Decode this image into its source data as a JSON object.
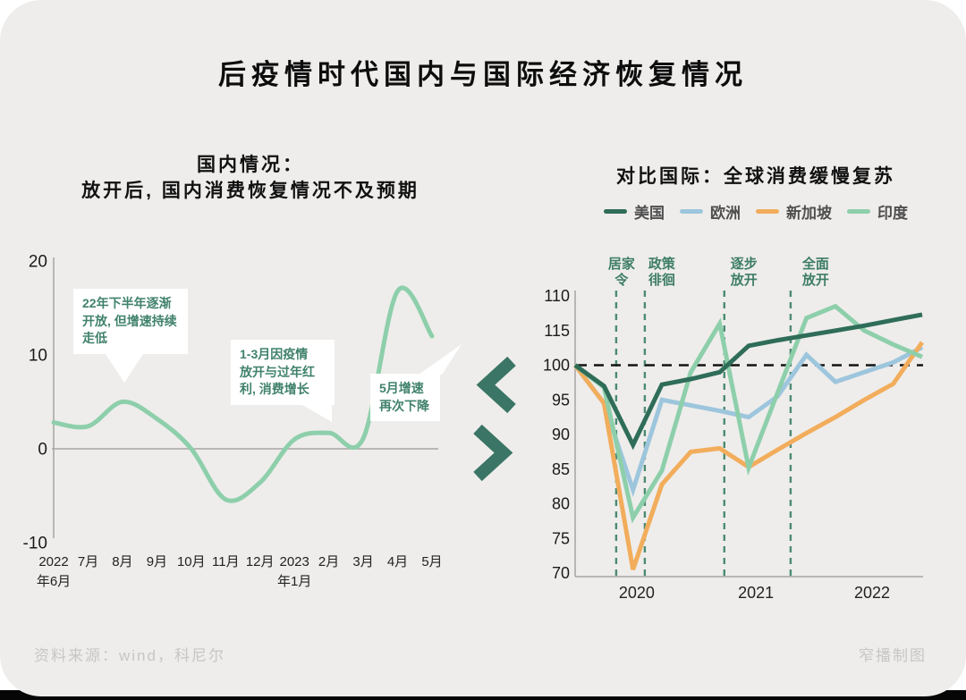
{
  "page": {
    "main_title": "后疫情时代国内与国际经济恢复情况",
    "source_note": "资料来源：wind，科尼尔",
    "credit": "窄播制图"
  },
  "left_section": {
    "subtitle_line1": "国内情况：",
    "subtitle_line2": "放开后, 国内消费恢复情况不及预期",
    "annotations": [
      {
        "lines": [
          "22年下半年逐渐",
          "开放, 但增速持续",
          "走低"
        ]
      },
      {
        "lines": [
          "1-3月因疫情",
          "放开与过年红",
          "利, 消费增长"
        ]
      },
      {
        "lines": [
          "5月增速",
          "再次下降"
        ]
      }
    ]
  },
  "right_section": {
    "subtitle": "对比国际：全球消费缓慢复苏"
  },
  "chart_data": [
    {
      "type": "line",
      "title": "国内情况：放开后, 国内消费恢复情况不及预期",
      "x_labels": [
        "2022年6月",
        "7月",
        "8月",
        "9月",
        "10月",
        "11月",
        "12月",
        "2023年1月",
        "2月",
        "3月",
        "4月",
        "5月"
      ],
      "values": [
        2.8,
        2.4,
        5.0,
        3.2,
        0,
        -5.4,
        -3.6,
        1.0,
        1.7,
        1.1,
        16.8,
        12.0
      ],
      "yticks": [
        20,
        10,
        0,
        -10
      ],
      "ylim": [
        -10,
        20
      ],
      "smooth": true,
      "grid": false,
      "line_color": "#8ecfab",
      "annotations": [
        "22年下半年逐渐开放, 但增速持续走低",
        "1-3月因疫情放开与过年红利, 消费增长",
        "5月增速再次下降"
      ]
    },
    {
      "type": "line",
      "title": "对比国际：全球消费缓慢复苏",
      "x_labels": [
        {
          "label": "2020",
          "index": 2.13
        },
        {
          "label": "2021",
          "index": 6.25
        },
        {
          "label": "2022",
          "index": 10.27
        }
      ],
      "ytick_labels": [
        "110",
        "115",
        "100",
        "95",
        "90",
        "85",
        "80",
        "75",
        "70"
      ],
      "ylim": [
        70,
        110
      ],
      "baseline": 100,
      "legend_position": "top",
      "series": [
        {
          "name": "美国",
          "color": "#2f6d59",
          "values": [
            100,
            97,
            88.5,
            97.2,
            98,
            99,
            102.8,
            103.6,
            104.3,
            105,
            105.7,
            106.5,
            107.3
          ]
        },
        {
          "name": "欧洲",
          "color": "#9dc6dd",
          "values": [
            100,
            94.5,
            82,
            95,
            94.2,
            93.4,
            92.5,
            95.5,
            101.5,
            97.6,
            99,
            100.4,
            102.6
          ]
        },
        {
          "name": "新加坡",
          "color": "#f2ad5c",
          "values": [
            100,
            94.5,
            70.5,
            82.8,
            87.5,
            88,
            85.3,
            87.8,
            90.2,
            92.5,
            95,
            97.3,
            103.3
          ]
        },
        {
          "name": "印度",
          "color": "#8ecfab",
          "values": [
            100,
            96.8,
            78,
            84.8,
            99,
            106,
            85.2,
            96,
            106.8,
            108.5,
            105,
            103,
            101.2
          ]
        }
      ],
      "events": [
        {
          "lines": [
            "居家",
            "令"
          ],
          "x_index": 1.42,
          "label_dx": 6
        },
        {
          "lines": [
            "政策",
            "徘徊"
          ],
          "x_index": 2.41,
          "label_dx": 19
        },
        {
          "lines": [
            "逐步",
            "放开"
          ],
          "x_index": 5.16,
          "label_dx": 22
        },
        {
          "lines": [
            "全面",
            "放开"
          ],
          "x_index": 7.45,
          "label_dx": 28
        }
      ]
    }
  ],
  "colors": {
    "background": "#eeedeb",
    "us_line": "#2f6d59",
    "europe_line": "#9dc6dd",
    "singapore_line": "#f2ad5c",
    "india_line": "#8ecfab",
    "domestic_line": "#8ecfab",
    "annotation_text": "#40826b",
    "event_text": "#3d7d66",
    "event_dash": "#4c8b73",
    "baseline_dash": "#141414",
    "chevron": "#3a7565",
    "axis": "#b7b6b4",
    "footer_text": "#c7c6c4"
  }
}
